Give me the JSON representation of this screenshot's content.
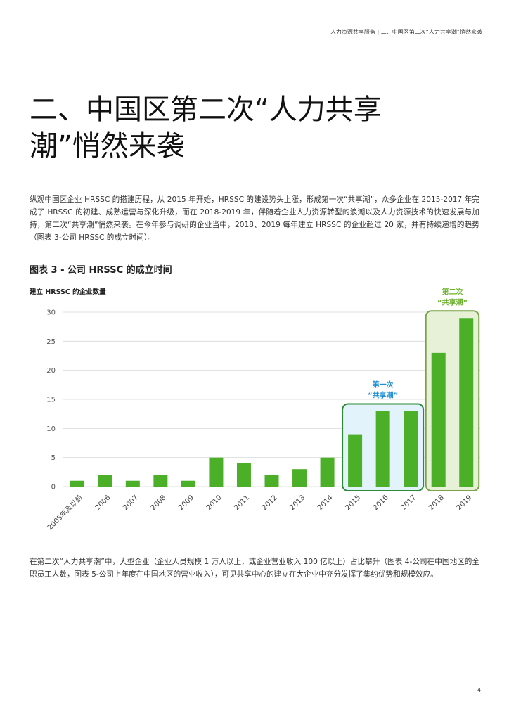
{
  "header": {
    "running_title": "人力资源共享服务 | 二、中国区第二次“人力共享潮”悄然来袭"
  },
  "section": {
    "title_line1": "二、中国区第二次“人力共享",
    "title_line2": "潮”悄然来袭"
  },
  "body": {
    "intro": "纵观中国区企业 HRSSC 的搭建历程，从 2015 年开始，HRSSC 的建设势头上涨，形成第一次“共享潮”，众多企业在 2015-2017 年完成了 HRSSC 的初建、成熟运营与深化升级，而在 2018-2019 年，伴随着企业人力资源转型的浪潮以及人力资源技术的快速发展与加持，第二次“共享潮”悄然来袭。在今年参与调研的企业当中，2018、2019 每年建立 HRSSC 的企业超过 20 家，并有持续递增的趋势（图表 3-公司 HRSSC 的成立时间）。",
    "closing": "在第二次“人力共享潮”中，大型企业（企业人员规模 1 万人以上，或企业营业收入 100 亿以上）占比攀升（图表 4-公司在中国地区的全职员工人数，图表 5-公司上年度在中国地区的营业收入），可见共享中心的建立在大企业中充分发挥了集约优势和规模效应。"
  },
  "figure": {
    "title": "图表 3 - 公司 HRSSC 的成立时间",
    "ylabel": "建立 HRSSC 的企业数量"
  },
  "chart_data": {
    "type": "bar",
    "title": "图表 3 - 公司 HRSSC 的成立时间",
    "ylabel": "建立 HRSSC 的企业数量",
    "xlabel": "",
    "categories": [
      "2005年及以前",
      "2006",
      "2007",
      "2008",
      "2009",
      "2010",
      "2011",
      "2012",
      "2013",
      "2014",
      "2015",
      "2016",
      "2017",
      "2018",
      "2019"
    ],
    "values": [
      1,
      2,
      1,
      2,
      1,
      5,
      4,
      2,
      3,
      5,
      9,
      13,
      13,
      23,
      29
    ],
    "ylim": [
      0,
      30
    ],
    "yticks": [
      0,
      5,
      10,
      15,
      20,
      25,
      30
    ],
    "grid": true,
    "bar_color": "#4caf28",
    "annotations": [
      {
        "line1": "第一次",
        "line2": "“共享潮”",
        "from": "2015",
        "to": "2017",
        "color": "#1e8fd6",
        "fill": "#e3f3fb",
        "border": "#2d8a36"
      },
      {
        "line1": "第二次",
        "line2": "“共享潮”",
        "from": "2018",
        "to": "2019",
        "color": "#6cb32e",
        "fill": "#e6f1d8",
        "border": "#7ba44a"
      }
    ]
  },
  "footer": {
    "page_number": "4"
  }
}
